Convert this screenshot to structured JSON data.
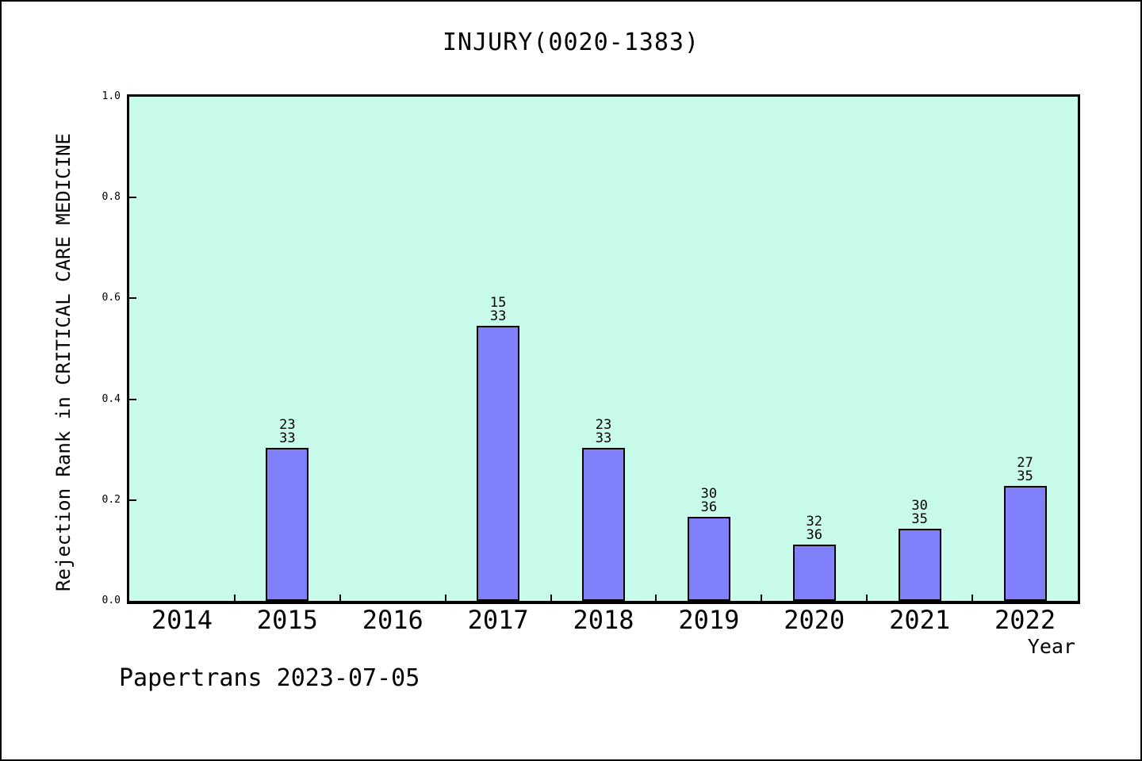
{
  "footer": "Papertrans 2023-07-05",
  "chart_data": {
    "type": "bar",
    "title": "INJURY(0020-1383)",
    "xlabel": "Year",
    "ylabel": "Rejection Rank in CRITICAL CARE MEDICINE",
    "ylim": [
      0,
      1
    ],
    "yticks": [
      "0.0",
      "0.2",
      "0.4",
      "0.6",
      "0.8",
      "1.0"
    ],
    "grid": false,
    "legend": null,
    "categories": [
      "2014",
      "2015",
      "2016",
      "2017",
      "2018",
      "2019",
      "2020",
      "2021",
      "2022"
    ],
    "bars": [
      {
        "category": "2014",
        "value": null,
        "label": null
      },
      {
        "category": "2015",
        "value": 0.303,
        "label": [
          "23",
          "33"
        ]
      },
      {
        "category": "2016",
        "value": null,
        "label": null
      },
      {
        "category": "2017",
        "value": 0.5455,
        "label": [
          "15",
          "33"
        ]
      },
      {
        "category": "2018",
        "value": 0.303,
        "label": [
          "23",
          "33"
        ]
      },
      {
        "category": "2019",
        "value": 0.1667,
        "label": [
          "30",
          "36"
        ]
      },
      {
        "category": "2020",
        "value": 0.1111,
        "label": [
          "32",
          "36"
        ]
      },
      {
        "category": "2021",
        "value": 0.1429,
        "label": [
          "30",
          "35"
        ]
      },
      {
        "category": "2022",
        "value": 0.2286,
        "label": [
          "27",
          "35"
        ]
      }
    ],
    "colors": {
      "bar": "#8080fa",
      "bar_edge": "#000000",
      "plot_bg": "#c9fbea",
      "figure_bg": "#ffffff",
      "text": "#000000"
    }
  }
}
